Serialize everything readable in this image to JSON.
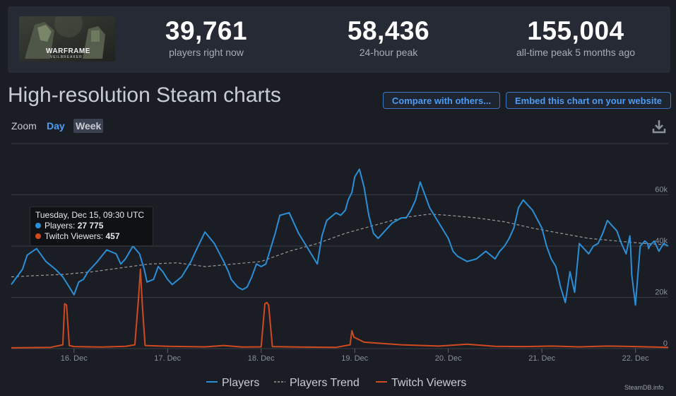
{
  "header": {
    "game_name": "WARFRAME",
    "game_tagline": "VEILBREAKER",
    "stats": [
      {
        "value": "39,761",
        "label": "players right now"
      },
      {
        "value": "58,436",
        "label": "24-hour peak"
      },
      {
        "value": "155,004",
        "label": "all-time peak 5 months ago"
      }
    ]
  },
  "title": "High-resolution Steam charts",
  "buttons": {
    "compare": "Compare with others...",
    "embed": "Embed this chart on your website"
  },
  "zoom": {
    "label": "Zoom",
    "options": [
      "Day",
      "Week"
    ],
    "active": "Week"
  },
  "tooltip": {
    "date": "Tuesday, Dec 15, 09:30 UTC",
    "players_label": "Players:",
    "players_value": "27 775",
    "twitch_label": "Twitch Viewers:",
    "twitch_value": "457"
  },
  "legend": [
    "Players",
    "Players Trend",
    "Twitch Viewers"
  ],
  "credit": "SteamDB.info",
  "colors": {
    "players": "#2b8fd6",
    "trend": "#9a9a9a",
    "twitch": "#d04a1f",
    "grid": "#3a3d45",
    "accent": "#4c9cf4"
  },
  "chart_data": {
    "type": "line",
    "x_ticks": [
      "16. Dec",
      "17. Dec",
      "18. Dec",
      "19. Dec",
      "20. Dec",
      "21. Dec",
      "22. Dec"
    ],
    "x_range": [
      15.33,
      22.35
    ],
    "y_ticks": [
      "0",
      "20k",
      "40k",
      "60k"
    ],
    "y_values": [
      0,
      20000,
      40000,
      60000
    ],
    "ylim": [
      0,
      80000
    ],
    "grid": true,
    "legend_position": "bottom",
    "series": [
      {
        "name": "Players",
        "x": [
          15.33,
          15.45,
          15.5,
          15.6,
          15.7,
          15.8,
          15.88,
          15.95,
          16.0,
          16.05,
          16.1,
          16.15,
          16.25,
          16.35,
          16.45,
          16.5,
          16.55,
          16.63,
          16.7,
          16.75,
          16.78,
          16.85,
          16.9,
          16.95,
          17.0,
          17.05,
          17.15,
          17.25,
          17.3,
          17.4,
          17.5,
          17.6,
          17.65,
          17.68,
          17.75,
          17.8,
          17.85,
          17.9,
          17.95,
          18.0,
          18.05,
          18.1,
          18.15,
          18.2,
          18.3,
          18.4,
          18.5,
          18.6,
          18.65,
          18.7,
          18.8,
          18.85,
          18.9,
          18.93,
          18.97,
          19.0,
          19.05,
          19.1,
          19.15,
          19.2,
          19.25,
          19.3,
          19.4,
          19.5,
          19.55,
          19.6,
          19.65,
          19.7,
          19.8,
          19.9,
          20.0,
          20.05,
          20.1,
          20.2,
          20.3,
          20.4,
          20.5,
          20.55,
          20.6,
          20.65,
          20.7,
          20.75,
          20.8,
          20.9,
          21.0,
          21.05,
          21.1,
          21.15,
          21.2,
          21.25,
          21.3,
          21.35,
          21.4,
          21.5,
          21.55,
          21.6,
          21.65,
          21.7,
          21.8,
          21.85,
          21.9,
          21.94,
          21.95,
          21.96,
          22.0,
          22.05,
          22.1,
          22.13,
          22.14,
          22.15,
          22.2,
          22.25,
          22.3,
          22.35
        ],
        "y": [
          25000,
          31000,
          36500,
          39000,
          34000,
          31000,
          28000,
          24000,
          21000,
          26000,
          27000,
          30000,
          34000,
          38500,
          37000,
          33000,
          35000,
          40000,
          37000,
          31000,
          26000,
          27000,
          32000,
          30000,
          27000,
          25000,
          28000,
          34000,
          38000,
          45500,
          41000,
          34000,
          30000,
          27000,
          24000,
          23000,
          24000,
          28000,
          33000,
          32000,
          33000,
          39000,
          45000,
          52000,
          53000,
          45000,
          39000,
          33000,
          44000,
          50000,
          53000,
          52000,
          54000,
          58000,
          61000,
          67000,
          70000,
          63000,
          52000,
          45000,
          43000,
          45000,
          49000,
          51000,
          51000,
          54000,
          58000,
          65000,
          55000,
          49000,
          43000,
          38000,
          36000,
          34000,
          35000,
          38000,
          35000,
          38000,
          40000,
          43000,
          47000,
          55000,
          58000,
          54000,
          47000,
          40000,
          35000,
          32000,
          24000,
          18000,
          30000,
          22000,
          41000,
          37000,
          40000,
          41000,
          45000,
          50000,
          46000,
          41000,
          37000,
          44000,
          38000,
          29000,
          17000,
          40000,
          42000,
          41000,
          39000,
          40000,
          42000,
          38000,
          41000,
          40000
        ],
        "color": "#2b8fd6"
      },
      {
        "name": "Players Trend",
        "x": [
          15.33,
          15.6,
          15.9,
          16.2,
          16.5,
          16.8,
          17.1,
          17.4,
          17.7,
          18.0,
          18.3,
          18.6,
          18.9,
          19.2,
          19.5,
          19.8,
          20.0,
          20.3,
          20.6,
          20.9,
          21.2,
          21.5,
          21.8,
          22.1,
          22.35
        ],
        "y": [
          28000,
          28500,
          29000,
          30000,
          31500,
          33000,
          33500,
          32000,
          33000,
          34000,
          38000,
          41000,
          45000,
          48000,
          51000,
          52500,
          52000,
          51000,
          49500,
          47000,
          45000,
          43000,
          42000,
          41000,
          40500
        ],
        "color": "#9a9a9a"
      },
      {
        "name": "Twitch Viewers",
        "x": [
          15.33,
          15.5,
          15.75,
          15.88,
          15.9,
          15.92,
          15.95,
          16.0,
          16.3,
          16.55,
          16.65,
          16.69,
          16.71,
          16.73,
          16.76,
          17.0,
          17.4,
          17.6,
          17.8,
          18.0,
          18.04,
          18.06,
          18.08,
          18.12,
          18.4,
          18.8,
          18.95,
          18.97,
          18.99,
          19.1,
          19.5,
          19.9,
          20.2,
          20.5,
          20.8,
          21.1,
          21.4,
          21.7,
          22.0,
          22.2,
          22.35
        ],
        "y": [
          300,
          400,
          500,
          1500,
          17500,
          17000,
          1200,
          800,
          600,
          900,
          1500,
          20000,
          31000,
          17000,
          1200,
          900,
          700,
          1200,
          600,
          700,
          17500,
          18000,
          17000,
          800,
          600,
          500,
          1500,
          7000,
          4500,
          2500,
          1500,
          1000,
          1700,
          900,
          800,
          1000,
          700,
          1000,
          800,
          600,
          500
        ],
        "color": "#d04a1f"
      }
    ],
    "annotation": {
      "date": "Tuesday, Dec 15, 09:30 UTC",
      "players": 27775,
      "twitch_viewers": 457
    }
  }
}
